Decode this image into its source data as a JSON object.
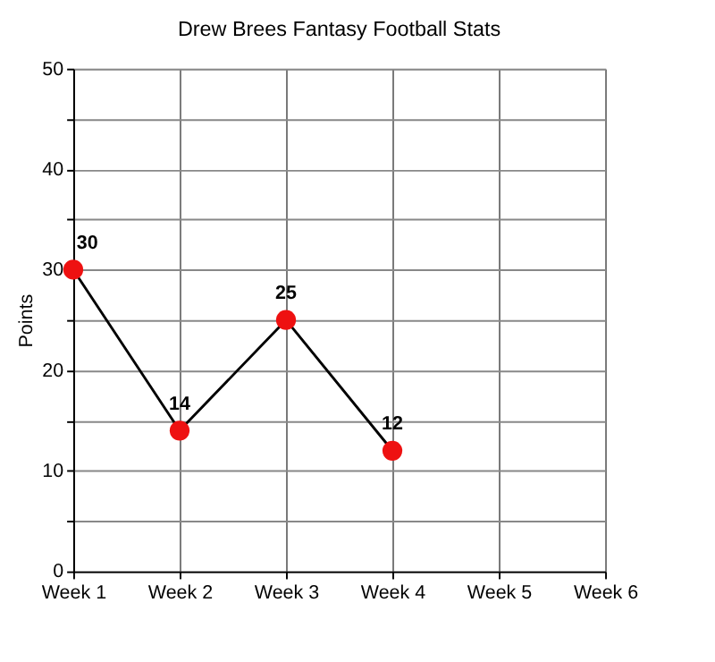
{
  "chart_data": {
    "type": "line",
    "title": "Drew Brees Fantasy Football Stats",
    "ylabel": "Points",
    "categories": [
      "Week 1",
      "Week 2",
      "Week 3",
      "Week 4",
      "Week 5",
      "Week 6"
    ],
    "series": [
      {
        "color": "#ee1111",
        "values": [
          30,
          14,
          25,
          12,
          null,
          null
        ]
      }
    ],
    "ylim": [
      0,
      50
    ],
    "yticks": [
      0,
      {
        "value": 5,
        "label": null
      },
      10,
      {
        "value": 15,
        "label": null
      },
      20,
      {
        "value": 25,
        "label": null
      },
      30,
      {
        "value": 35,
        "label": null
      },
      40,
      {
        "value": 45,
        "label": null
      },
      50
    ],
    "grid": true,
    "marker": "circle",
    "line_style": "solid",
    "data_labels": true
  }
}
